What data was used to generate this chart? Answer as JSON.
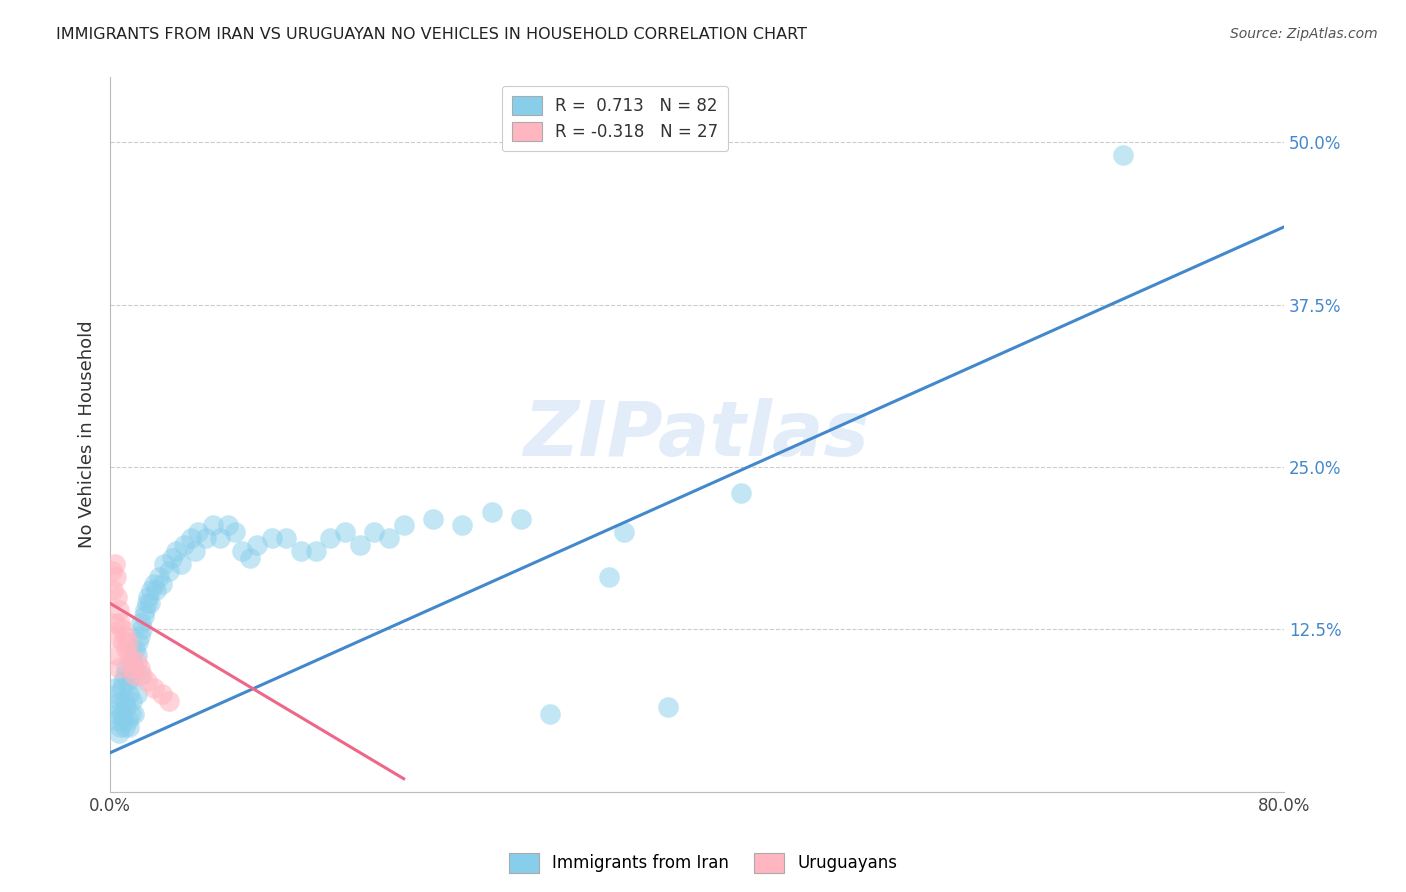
{
  "title": "IMMIGRANTS FROM IRAN VS URUGUAYAN NO VEHICLES IN HOUSEHOLD CORRELATION CHART",
  "source": "Source: ZipAtlas.com",
  "ylabel": "No Vehicles in Household",
  "xmin": 0.0,
  "xmax": 0.8,
  "ymin": 0.0,
  "ymax": 0.55,
  "grid_color": "#cccccc",
  "background_color": "#ffffff",
  "blue_color": "#87CEEB",
  "pink_color": "#FFB6C1",
  "blue_line_color": "#4488CC",
  "pink_line_color": "#EE6688",
  "watermark": "ZIPatlas",
  "legend_r_blue": "0.713",
  "legend_n_blue": "82",
  "legend_r_pink": "-0.318",
  "legend_n_pink": "27",
  "legend_label_blue": "Immigrants from Iran",
  "legend_label_pink": "Uruguayans",
  "blue_line_x0": 0.0,
  "blue_line_y0": 0.03,
  "blue_line_x1": 0.8,
  "blue_line_y1": 0.435,
  "pink_line_x0": 0.0,
  "pink_line_y0": 0.145,
  "pink_line_x1": 0.2,
  "pink_line_y1": 0.01,
  "blue_scatter_x": [
    0.003,
    0.004,
    0.005,
    0.005,
    0.006,
    0.006,
    0.007,
    0.007,
    0.008,
    0.008,
    0.009,
    0.009,
    0.01,
    0.01,
    0.01,
    0.011,
    0.011,
    0.012,
    0.012,
    0.013,
    0.013,
    0.014,
    0.014,
    0.015,
    0.015,
    0.016,
    0.016,
    0.017,
    0.018,
    0.018,
    0.019,
    0.02,
    0.02,
    0.021,
    0.022,
    0.023,
    0.024,
    0.025,
    0.026,
    0.027,
    0.028,
    0.03,
    0.031,
    0.033,
    0.035,
    0.037,
    0.04,
    0.042,
    0.045,
    0.048,
    0.05,
    0.055,
    0.058,
    0.06,
    0.065,
    0.07,
    0.075,
    0.08,
    0.085,
    0.09,
    0.095,
    0.1,
    0.11,
    0.12,
    0.13,
    0.14,
    0.15,
    0.16,
    0.17,
    0.18,
    0.19,
    0.2,
    0.22,
    0.24,
    0.26,
    0.28,
    0.3,
    0.34,
    0.35,
    0.38,
    0.43,
    0.69
  ],
  "blue_scatter_y": [
    0.08,
    0.055,
    0.075,
    0.06,
    0.065,
    0.045,
    0.07,
    0.05,
    0.08,
    0.06,
    0.085,
    0.055,
    0.09,
    0.07,
    0.05,
    0.095,
    0.065,
    0.085,
    0.055,
    0.075,
    0.05,
    0.09,
    0.06,
    0.1,
    0.07,
    0.095,
    0.06,
    0.11,
    0.105,
    0.075,
    0.115,
    0.12,
    0.09,
    0.13,
    0.125,
    0.135,
    0.14,
    0.145,
    0.15,
    0.145,
    0.155,
    0.16,
    0.155,
    0.165,
    0.16,
    0.175,
    0.17,
    0.18,
    0.185,
    0.175,
    0.19,
    0.195,
    0.185,
    0.2,
    0.195,
    0.205,
    0.195,
    0.205,
    0.2,
    0.185,
    0.18,
    0.19,
    0.195,
    0.195,
    0.185,
    0.185,
    0.195,
    0.2,
    0.19,
    0.2,
    0.195,
    0.205,
    0.21,
    0.205,
    0.215,
    0.21,
    0.06,
    0.165,
    0.2,
    0.065,
    0.23,
    0.49
  ],
  "pink_scatter_x": [
    0.001,
    0.002,
    0.003,
    0.003,
    0.004,
    0.004,
    0.005,
    0.005,
    0.006,
    0.006,
    0.007,
    0.008,
    0.009,
    0.01,
    0.011,
    0.012,
    0.013,
    0.014,
    0.015,
    0.016,
    0.018,
    0.02,
    0.022,
    0.025,
    0.03,
    0.035,
    0.04
  ],
  "pink_scatter_y": [
    0.17,
    0.155,
    0.175,
    0.13,
    0.165,
    0.12,
    0.15,
    0.105,
    0.14,
    0.095,
    0.13,
    0.125,
    0.115,
    0.12,
    0.11,
    0.115,
    0.105,
    0.1,
    0.095,
    0.09,
    0.1,
    0.095,
    0.09,
    0.085,
    0.08,
    0.075,
    0.07
  ]
}
